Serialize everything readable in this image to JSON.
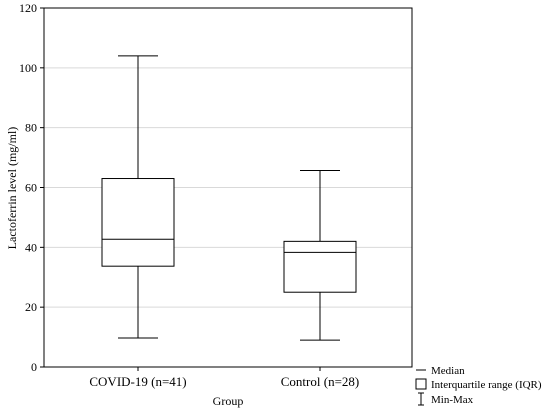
{
  "chart_data": {
    "type": "box",
    "xlabel": "Group",
    "ylabel": "Lactoferrin level (mg/ml)",
    "ylim": [
      0,
      120
    ],
    "yticks": [
      0,
      20,
      40,
      60,
      80,
      100,
      120
    ],
    "grid": "horizontal",
    "legend_placement": "bottom-right",
    "categories": [
      "COVID-19 (n=41)",
      "Control (n=28)"
    ],
    "boxes": [
      {
        "min": 9.7,
        "q1": 33.7,
        "median": 42.7,
        "q3": 63.0,
        "max": 104.0
      },
      {
        "min": 9.0,
        "q1": 25.0,
        "median": 38.3,
        "q3": 42.0,
        "max": 65.7
      }
    ],
    "legend": [
      {
        "key": "median",
        "label": "Median"
      },
      {
        "key": "iqr",
        "label": "Interquartile range (IQR)"
      },
      {
        "key": "minmax",
        "label": "Min-Max"
      }
    ]
  }
}
